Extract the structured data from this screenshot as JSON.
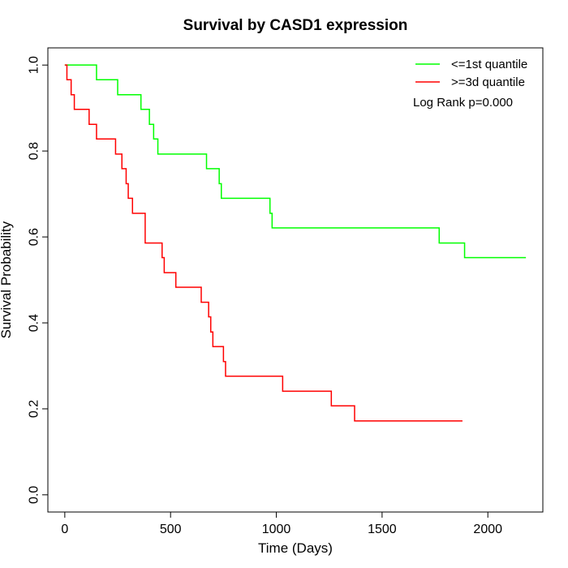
{
  "chart_data": {
    "type": "line",
    "title": "Survival by CASD1 expression",
    "xlabel": "Time (Days)",
    "ylabel": "Survival Probability",
    "xlim": [
      -80,
      2260
    ],
    "ylim": [
      -0.04,
      1.04
    ],
    "xticks": [
      0,
      500,
      1000,
      1500,
      2000
    ],
    "yticks": [
      0.0,
      0.2,
      0.4,
      0.6,
      0.8,
      1.0
    ],
    "xtick_labels": [
      "0",
      "500",
      "1000",
      "1500",
      "2000"
    ],
    "ytick_labels": [
      "0.0",
      "0.2",
      "0.4",
      "0.6",
      "0.8",
      "1.0"
    ],
    "grid": false,
    "legend_position": "top-right",
    "annotation": "Log Rank p=0.000",
    "series": [
      {
        "name": "<=1st quantile",
        "color": "#00ff00",
        "x": [
          0,
          150,
          250,
          360,
          400,
          420,
          440,
          470,
          670,
          730,
          740,
          970,
          980,
          1770,
          1890,
          2180
        ],
        "y": [
          1.0,
          0.966,
          0.931,
          0.897,
          0.862,
          0.828,
          0.793,
          0.793,
          0.759,
          0.724,
          0.69,
          0.655,
          0.621,
          0.586,
          0.552,
          0.552
        ]
      },
      {
        "name": ">=3d quantile",
        "color": "#ff0000",
        "x": [
          0,
          10,
          30,
          45,
          115,
          150,
          240,
          270,
          290,
          300,
          320,
          380,
          460,
          470,
          525,
          645,
          680,
          690,
          700,
          720,
          750,
          760,
          1030,
          1260,
          1370,
          1880
        ],
        "y": [
          1.0,
          0.966,
          0.931,
          0.897,
          0.862,
          0.828,
          0.793,
          0.759,
          0.724,
          0.69,
          0.655,
          0.586,
          0.552,
          0.517,
          0.483,
          0.448,
          0.414,
          0.379,
          0.345,
          0.345,
          0.31,
          0.276,
          0.241,
          0.207,
          0.172,
          0.172
        ]
      }
    ]
  }
}
